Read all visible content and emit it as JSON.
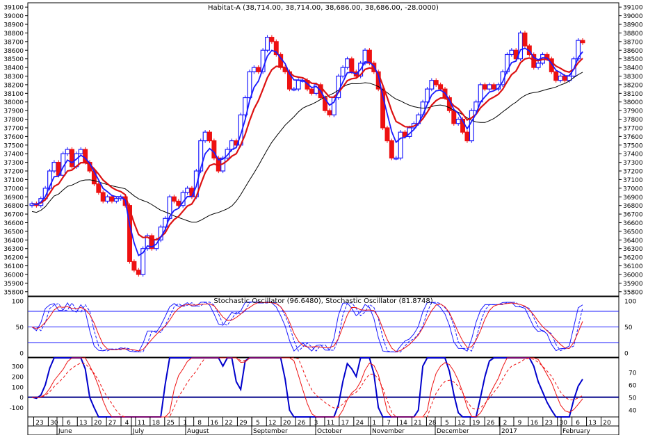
{
  "chart_data": {
    "type": "candlestick",
    "title": "Habitat-A (38,714.00, 38,714.00, 38,686.00, 38,686.00, -28.0000)",
    "price_axis": {
      "ylim": [
        35750,
        39150
      ],
      "ticks": [
        35800,
        35900,
        36000,
        36100,
        36200,
        36300,
        36400,
        36500,
        36600,
        36700,
        36800,
        36900,
        37000,
        37100,
        37200,
        37300,
        37400,
        37500,
        37600,
        37700,
        37800,
        37900,
        38000,
        38100,
        38200,
        38300,
        38400,
        38500,
        38600,
        38700,
        38800,
        38900,
        39000,
        39100
      ]
    },
    "colors": {
      "up": "#1a1aff",
      "down": "#ee1111",
      "ma_fast": "#1a1aff",
      "ma_slow": "#dd1111",
      "ma_long": "#000000",
      "grid": "#1a1aff"
    },
    "x_axis": {
      "day_labels": [
        "23",
        "30",
        "6",
        "13",
        "20",
        "27",
        "4",
        "11",
        "18",
        "25",
        "1",
        "8",
        "16",
        "22",
        "29",
        "5",
        "12",
        "20",
        "26",
        "3",
        "11",
        "17",
        "24",
        "1",
        "7",
        "14",
        "21",
        "28",
        "5",
        "12",
        "19",
        "26",
        "2",
        "9",
        "16",
        "23",
        "30",
        "6",
        "13",
        "20"
      ],
      "month_labels": [
        "June",
        "July",
        "August",
        "September",
        "October",
        "November",
        "December",
        "2017",
        "February"
      ]
    },
    "series_close": [
      36820,
      36800,
      36880,
      37000,
      37200,
      37300,
      37150,
      37400,
      37450,
      37250,
      37400,
      37450,
      37300,
      37200,
      37050,
      36950,
      36850,
      36900,
      36850,
      36880,
      36900,
      36800,
      36150,
      36050,
      36000,
      36300,
      36450,
      36300,
      36400,
      36550,
      36650,
      36900,
      36850,
      36800,
      36950,
      37000,
      36900,
      37200,
      37550,
      37650,
      37550,
      37350,
      37200,
      37350,
      37450,
      37550,
      37500,
      37850,
      38050,
      38350,
      38400,
      38350,
      38600,
      38750,
      38700,
      38550,
      38400,
      38350,
      38150,
      38150,
      38250,
      38250,
      38150,
      38100,
      38200,
      38050,
      37900,
      37850,
      38050,
      38300,
      38400,
      38500,
      38350,
      38300,
      38450,
      38600,
      38450,
      38350,
      38150,
      37700,
      37550,
      37350,
      37350,
      37650,
      37600,
      37700,
      37750,
      37850,
      38000,
      38150,
      38250,
      38200,
      38150,
      38050,
      37900,
      37750,
      37800,
      37650,
      37550,
      37900,
      38000,
      38200,
      38150,
      38200,
      38150,
      38200,
      38350,
      38550,
      38600,
      38500,
      38800,
      38650,
      38550,
      38400,
      38450,
      38550,
      38500,
      38350,
      38250,
      38300,
      38250,
      38300,
      38500,
      38714,
      38686
    ],
    "stochastic": {
      "label": "Stochastic Oscillator (96.6480), Stochastic Oscillator (81.8748)",
      "ylim": [
        -8,
        108
      ],
      "ticks": [
        0,
        50,
        100
      ],
      "levels": [
        20,
        50,
        80
      ]
    },
    "momentum": {
      "ylim": [
        -190,
        380
      ],
      "ticks_left": [
        -100,
        0,
        100,
        200,
        300
      ],
      "ticks_right": [
        40,
        50,
        60,
        70
      ]
    }
  }
}
